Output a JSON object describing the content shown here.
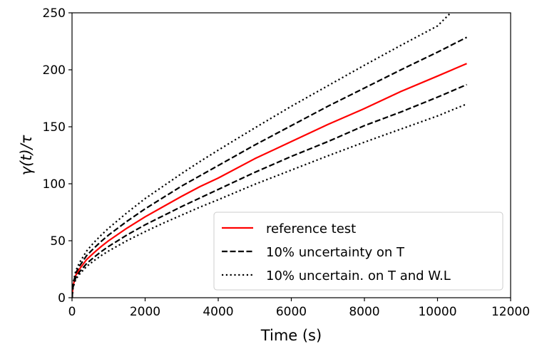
{
  "chart_data": {
    "type": "line",
    "title": "",
    "xlabel": "Time (s)",
    "ylabel": "γ(t)/τ",
    "xlim": [
      0,
      12000
    ],
    "ylim": [
      0,
      250
    ],
    "x_ticks": [
      0,
      2000,
      4000,
      6000,
      8000,
      10000,
      12000
    ],
    "y_ticks": [
      0,
      50,
      100,
      150,
      200,
      250
    ],
    "x_tick_labels": [
      "0",
      "2000",
      "4000",
      "6000",
      "8000",
      "10000",
      "12000"
    ],
    "y_tick_labels": [
      "0",
      "50",
      "100",
      "150",
      "200",
      "250"
    ],
    "grid": false,
    "legend": {
      "position": "lower-right",
      "entries": [
        "reference test",
        "10% uncertainty on T",
        "10% uncertain. on T and W.L"
      ]
    },
    "series": [
      {
        "name": "reference test",
        "color": "#ff0000",
        "style": "solid",
        "x": [
          0,
          25,
          100,
          200,
          400,
          600,
          800,
          1000,
          1500,
          2000,
          2500,
          3000,
          3500,
          4000,
          5000,
          6000,
          7000,
          8000,
          9000,
          10000,
          10800
        ],
        "y": [
          0,
          10,
          19.5,
          25,
          33.5,
          39.5,
          45,
          50,
          61,
          71,
          80,
          89,
          97.5,
          105,
          122,
          137,
          152,
          166,
          181,
          194.5,
          205.5
        ]
      },
      {
        "name": "10% uncertainty on T",
        "color": "#000000",
        "style": "dashed",
        "x": [
          0,
          25,
          100,
          200,
          400,
          600,
          800,
          1000,
          1500,
          2000,
          2500,
          3000,
          3500,
          4000,
          5000,
          6000,
          7000,
          8000,
          9000,
          10000,
          10800
        ],
        "y": [
          0,
          11,
          21.5,
          27.5,
          37,
          43.5,
          49.5,
          55,
          67,
          78,
          88,
          98,
          107,
          116,
          134,
          151,
          168,
          184,
          200,
          215.5,
          228.5
        ]
      },
      {
        "name": "10% uncertainty on T",
        "color": "#000000",
        "style": "dashed",
        "x": [
          0,
          25,
          100,
          200,
          400,
          600,
          800,
          1000,
          1500,
          2000,
          2500,
          3000,
          3500,
          4000,
          5000,
          6000,
          7000,
          8000,
          9000,
          10000,
          10800
        ],
        "y": [
          0,
          9,
          17.5,
          22.5,
          30,
          35.5,
          40.5,
          45,
          55,
          64,
          72,
          80,
          87.5,
          95,
          110,
          124,
          137,
          151,
          163,
          176,
          187
        ]
      },
      {
        "name": "10% uncertain. on T and W.L",
        "color": "#000000",
        "style": "dotted",
        "x": [
          0,
          25,
          100,
          200,
          400,
          600,
          800,
          1000,
          1500,
          2000,
          2500,
          3000,
          3500,
          4000,
          5000,
          6000,
          7000,
          8000,
          9000,
          10000,
          10360
        ],
        "y": [
          0,
          12,
          23.5,
          30.5,
          41,
          48.5,
          55,
          61,
          74.5,
          87,
          98,
          109,
          119.5,
          129.5,
          149,
          168,
          186,
          204,
          221.5,
          238.5,
          250
        ]
      },
      {
        "name": "10% uncertain. on T and W.L",
        "color": "#000000",
        "style": "dotted",
        "x": [
          0,
          25,
          100,
          200,
          400,
          600,
          800,
          1000,
          1500,
          2000,
          2500,
          3000,
          3500,
          4000,
          5000,
          6000,
          7000,
          8000,
          9000,
          10000,
          10800
        ],
        "y": [
          0,
          8.5,
          16,
          20.5,
          27.5,
          32.5,
          37,
          41,
          50,
          58,
          65.5,
          72.5,
          79.5,
          86,
          99.5,
          112,
          124.5,
          136.5,
          148,
          159.5,
          170
        ]
      }
    ]
  }
}
